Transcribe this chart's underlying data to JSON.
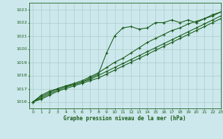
{
  "title": "Graphe pression niveau de la mer (hPa)",
  "bg_color": "#cce8ec",
  "grid_color": "#aacccc",
  "line_color": "#1a5c1a",
  "xlim": [
    -0.5,
    23
  ],
  "ylim": [
    1015.5,
    1023.5
  ],
  "yticks": [
    1016,
    1017,
    1018,
    1019,
    1020,
    1021,
    1022,
    1023
  ],
  "xticks": [
    0,
    1,
    2,
    3,
    4,
    5,
    6,
    7,
    8,
    9,
    10,
    11,
    12,
    13,
    14,
    15,
    16,
    17,
    18,
    19,
    20,
    21,
    22,
    23
  ],
  "series": [
    [
      1016.0,
      1016.5,
      1016.8,
      1017.0,
      1017.2,
      1017.3,
      1017.5,
      1017.8,
      1018.1,
      1019.7,
      1021.0,
      1021.6,
      1021.7,
      1021.5,
      1021.6,
      1022.0,
      1022.0,
      1022.2,
      1022.0,
      1022.2,
      1022.0,
      1022.3,
      1022.5,
      1022.8
    ],
    [
      1016.0,
      1016.4,
      1016.7,
      1017.0,
      1017.2,
      1017.4,
      1017.6,
      1017.9,
      1018.2,
      1018.6,
      1019.0,
      1019.3,
      1019.7,
      1020.1,
      1020.5,
      1020.8,
      1021.1,
      1021.4,
      1021.6,
      1021.9,
      1022.1,
      1022.3,
      1022.6,
      1022.8
    ],
    [
      1016.0,
      1016.3,
      1016.6,
      1016.9,
      1017.1,
      1017.3,
      1017.5,
      1017.7,
      1018.0,
      1018.3,
      1018.6,
      1018.9,
      1019.2,
      1019.5,
      1019.8,
      1020.1,
      1020.4,
      1020.7,
      1021.0,
      1021.3,
      1021.6,
      1021.9,
      1022.2,
      1022.5
    ],
    [
      1016.0,
      1016.2,
      1016.5,
      1016.8,
      1017.0,
      1017.2,
      1017.4,
      1017.6,
      1017.8,
      1018.1,
      1018.4,
      1018.7,
      1019.0,
      1019.3,
      1019.6,
      1019.9,
      1020.2,
      1020.5,
      1020.8,
      1021.1,
      1021.4,
      1021.7,
      1022.0,
      1022.3
    ]
  ]
}
